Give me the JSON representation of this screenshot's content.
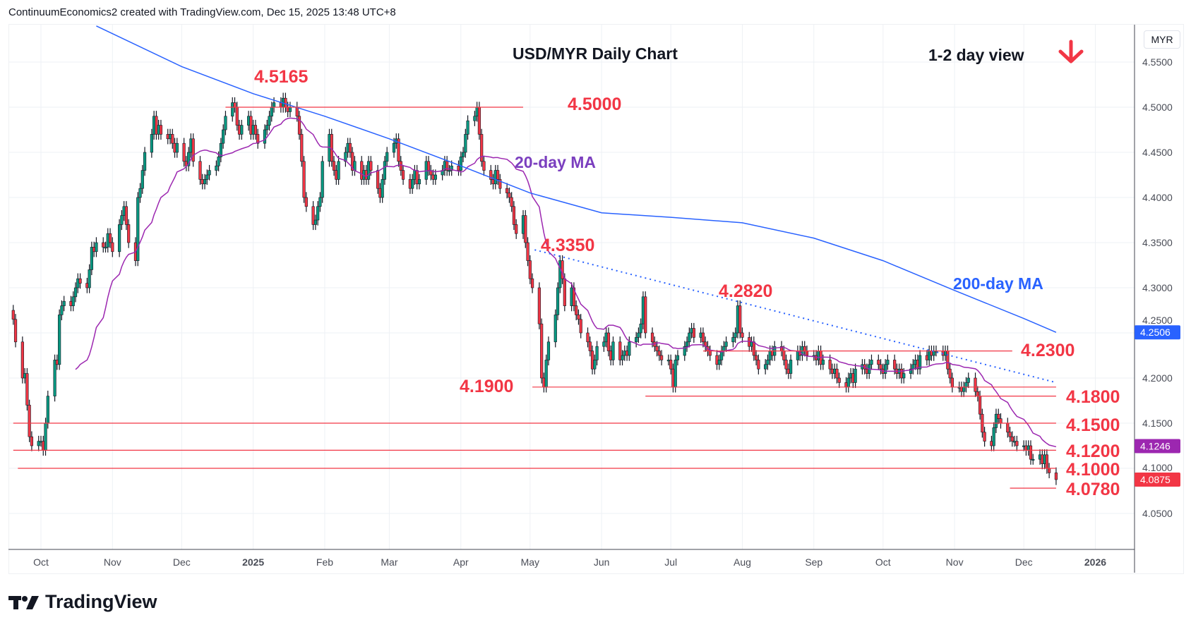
{
  "header": {
    "attribution": "ContinuumEconomics2 created with TradingView.com, Dec 15, 2025 13:48 UTC+8"
  },
  "logo": {
    "text": "TradingView"
  },
  "chart_data": {
    "type": "candlestick",
    "title": "USD/MYR Daily Chart",
    "subtitle": "1-2 day view",
    "bias_icon": "arrow-down-icon",
    "currency": "MYR",
    "ylim": [
      4.02,
      4.57
    ],
    "y_ticks": [
      "4.0500",
      "4.1000",
      "4.1500",
      "4.2000",
      "4.2500",
      "4.3000",
      "4.3500",
      "4.4000",
      "4.4500",
      "4.5000",
      "4.5500"
    ],
    "x_ticks": [
      {
        "label": "Oct",
        "date": "2024-10-01"
      },
      {
        "label": "Nov",
        "date": "2024-11-01"
      },
      {
        "label": "Dec",
        "date": "2024-12-01"
      },
      {
        "label": "2025",
        "date": "2025-01-01",
        "bold": true
      },
      {
        "label": "Feb",
        "date": "2025-02-01"
      },
      {
        "label": "Mar",
        "date": "2025-03-01"
      },
      {
        "label": "Apr",
        "date": "2025-04-01"
      },
      {
        "label": "May",
        "date": "2025-05-01"
      },
      {
        "label": "Jun",
        "date": "2025-06-01"
      },
      {
        "label": "Jul",
        "date": "2025-07-01"
      },
      {
        "label": "Aug",
        "date": "2025-08-01"
      },
      {
        "label": "Sep",
        "date": "2025-09-01"
      },
      {
        "label": "Oct",
        "date": "2025-10-01"
      },
      {
        "label": "Nov",
        "date": "2025-11-01"
      },
      {
        "label": "Dec",
        "date": "2025-12-01"
      },
      {
        "label": "2026",
        "date": "2026-01-01",
        "bold": true
      }
    ],
    "colors": {
      "up": "#089981",
      "down": "#f23645",
      "ma20": "#9c27b0",
      "ma200": "#2962ff",
      "levels": "#f23645",
      "trendline": "#2962ff"
    },
    "daily_closes_by_month": [
      {
        "month": "2024-09",
        "from_day": 19,
        "closes": [
          4.265,
          4.24,
          4.2,
          4.205,
          4.17,
          4.135,
          4.125,
          4.13
        ]
      },
      {
        "month": "2024-10",
        "closes": [
          4.13,
          4.12,
          4.15,
          4.18,
          4.22,
          4.215,
          4.27,
          4.28,
          4.285,
          4.28,
          4.29,
          4.3,
          4.31,
          4.305,
          4.3,
          4.32,
          4.345,
          4.34,
          4.35,
          4.345,
          4.345,
          4.36,
          4.35
        ]
      },
      {
        "month": "2024-11",
        "closes": [
          4.34,
          4.37,
          4.38,
          4.39,
          4.37,
          4.35,
          4.33,
          4.4,
          4.41,
          4.43,
          4.45,
          4.47,
          4.49,
          4.47,
          4.48,
          4.47,
          4.465,
          4.47,
          4.46,
          4.45,
          4.46
        ]
      },
      {
        "month": "2024-12",
        "closes": [
          4.44,
          4.435,
          4.45,
          4.465,
          4.44,
          4.42,
          4.415,
          4.42,
          4.425,
          4.43,
          4.435,
          4.445,
          4.46,
          4.475,
          4.49,
          4.505,
          4.5,
          4.48,
          4.47,
          4.48,
          4.49,
          4.47
        ]
      },
      {
        "month": "2025-01",
        "closes": [
          4.48,
          4.47,
          4.46,
          4.475,
          4.48,
          4.49,
          4.5,
          4.505,
          4.5,
          4.51,
          4.5,
          4.495,
          4.5,
          4.49,
          4.47,
          4.44,
          4.4,
          4.39,
          4.37,
          4.375,
          4.39,
          4.4,
          4.44
        ]
      },
      {
        "month": "2025-02",
        "closes": [
          4.47,
          4.44,
          4.43,
          4.42,
          4.44,
          4.45,
          4.46,
          4.45,
          4.43,
          4.44,
          4.42,
          4.43,
          4.42,
          4.44,
          4.43,
          4.41,
          4.4,
          4.42,
          4.44,
          4.45
        ]
      },
      {
        "month": "2025-03",
        "closes": [
          4.46,
          4.465,
          4.44,
          4.43,
          4.42,
          4.41,
          4.42,
          4.43,
          4.415,
          4.42,
          4.44,
          4.43,
          4.425,
          4.42,
          4.425,
          4.43,
          4.44,
          4.43,
          4.43,
          4.435,
          4.43
        ]
      },
      {
        "month": "2025-04",
        "closes": [
          4.445,
          4.45,
          4.47,
          4.485,
          4.49,
          4.5,
          4.47,
          4.44,
          4.43,
          4.42,
          4.415,
          4.43,
          4.42,
          4.41,
          4.405,
          4.4,
          4.39,
          4.37,
          4.36,
          4.38,
          4.35,
          4.33
        ]
      },
      {
        "month": "2025-05",
        "closes": [
          4.31,
          4.3,
          4.26,
          4.2,
          4.19,
          4.22,
          4.24,
          4.27,
          4.3,
          4.33,
          4.31,
          4.28,
          4.3,
          4.28,
          4.27,
          4.265,
          4.25,
          4.24,
          4.23,
          4.21,
          4.22,
          4.235
        ]
      },
      {
        "month": "2025-06",
        "closes": [
          4.24,
          4.25,
          4.23,
          4.22,
          4.24,
          4.22,
          4.225,
          4.23,
          4.225,
          4.24,
          4.245,
          4.25,
          4.26,
          4.29,
          4.25,
          4.24,
          4.235,
          4.23,
          4.225,
          4.22,
          4.22
        ]
      },
      {
        "month": "2025-07",
        "closes": [
          4.21,
          4.19,
          4.22,
          4.225,
          4.235,
          4.24,
          4.25,
          4.255,
          4.245,
          4.25,
          4.24,
          4.235,
          4.23,
          4.225,
          4.215,
          4.22,
          4.23,
          4.235,
          4.24,
          4.245,
          4.25,
          4.28,
          4.25
        ]
      },
      {
        "month": "2025-08",
        "closes": [
          4.245,
          4.235,
          4.24,
          4.225,
          4.22,
          4.21,
          4.215,
          4.22,
          4.23,
          4.225,
          4.235,
          4.23,
          4.22,
          4.21,
          4.205,
          4.22,
          4.23,
          4.225,
          4.235,
          4.23,
          4.225
        ]
      },
      {
        "month": "2025-09",
        "closes": [
          4.225,
          4.22,
          4.23,
          4.215,
          4.22,
          4.21,
          4.205,
          4.21,
          4.2,
          4.195,
          4.19,
          4.2,
          4.205,
          4.195,
          4.21,
          4.215,
          4.21,
          4.205,
          4.215,
          4.22,
          4.215,
          4.21
        ]
      },
      {
        "month": "2025-10",
        "closes": [
          4.205,
          4.215,
          4.22,
          4.21,
          4.205,
          4.21,
          4.2,
          4.205,
          4.21,
          4.215,
          4.22,
          4.21,
          4.225,
          4.22,
          4.23,
          4.225,
          4.23,
          4.23,
          4.225,
          4.23,
          4.21,
          4.2,
          4.19
        ]
      },
      {
        "month": "2025-11",
        "closes": [
          4.19,
          4.185,
          4.19,
          4.195,
          4.2,
          4.185,
          4.18,
          4.16,
          4.14,
          4.13,
          4.125,
          4.145,
          4.16,
          4.155,
          4.15,
          4.14,
          4.135,
          4.13,
          4.13,
          4.125
        ]
      },
      {
        "month": "2025-12",
        "closes": [
          4.125,
          4.12,
          4.125,
          4.11,
          4.11,
          4.115,
          4.105,
          4.115,
          4.1,
          4.095,
          4.0875
        ]
      }
    ],
    "ma200_points": [
      {
        "date": "2024-10-25",
        "value": 4.59
      },
      {
        "date": "2024-12-01",
        "value": 4.545
      },
      {
        "date": "2025-01-01",
        "value": 4.515
      },
      {
        "date": "2025-02-01",
        "value": 4.49
      },
      {
        "date": "2025-03-01",
        "value": 4.465
      },
      {
        "date": "2025-04-01",
        "value": 4.435
      },
      {
        "date": "2025-05-01",
        "value": 4.405
      },
      {
        "date": "2025-06-01",
        "value": 4.383
      },
      {
        "date": "2025-07-01",
        "value": 4.378
      },
      {
        "date": "2025-08-01",
        "value": 4.372
      },
      {
        "date": "2025-09-01",
        "value": 4.355
      },
      {
        "date": "2025-10-01",
        "value": 4.33
      },
      {
        "date": "2025-11-01",
        "value": 4.297
      },
      {
        "date": "2025-12-01",
        "value": 4.266
      },
      {
        "date": "2025-12-15",
        "value": 4.2506
      }
    ],
    "levels": [
      {
        "value": 4.5,
        "label": "4.5000",
        "from": "2024-12-20",
        "to": "2025-04-28"
      },
      {
        "value": 4.23,
        "label": "4.2300",
        "from": "2025-07-15",
        "to": "2025-11-26"
      },
      {
        "value": 4.19,
        "label": "4.1900",
        "from": "2025-05-02",
        "to": "2025-12-15"
      },
      {
        "value": 4.18,
        "label": "4.1800",
        "from": "2025-06-20",
        "to": "2025-12-15"
      },
      {
        "value": 4.15,
        "label": "4.1500",
        "from": "2024-09-19",
        "to": "2025-12-15"
      },
      {
        "value": 4.12,
        "label": "4.1200",
        "from": "2024-09-19",
        "to": "2025-12-15"
      },
      {
        "value": 4.1,
        "label": "4.1000",
        "from": "2024-09-21",
        "to": "2025-12-15"
      },
      {
        "value": 4.078,
        "label": "4.0780",
        "from": "2025-11-25",
        "to": "2025-12-15"
      }
    ],
    "trendline": {
      "from": {
        "date": "2025-05-03",
        "value": 4.342
      },
      "to": {
        "date": "2025-12-15",
        "value": 4.195
      }
    },
    "annotations": {
      "high_2025": "4.5165",
      "high_may": "4.3350",
      "high_aug": "4.2820",
      "ma20_label": "20-day MA",
      "ma200_label": "200-day MA"
    },
    "price_badges": [
      {
        "value": 4.2506,
        "label": "4.2506",
        "color": "#2962ff"
      },
      {
        "value": 4.1246,
        "label": "4.1246",
        "color": "#9c27b0"
      },
      {
        "value": 4.0875,
        "label": "4.0875",
        "color": "#f23645"
      }
    ]
  }
}
